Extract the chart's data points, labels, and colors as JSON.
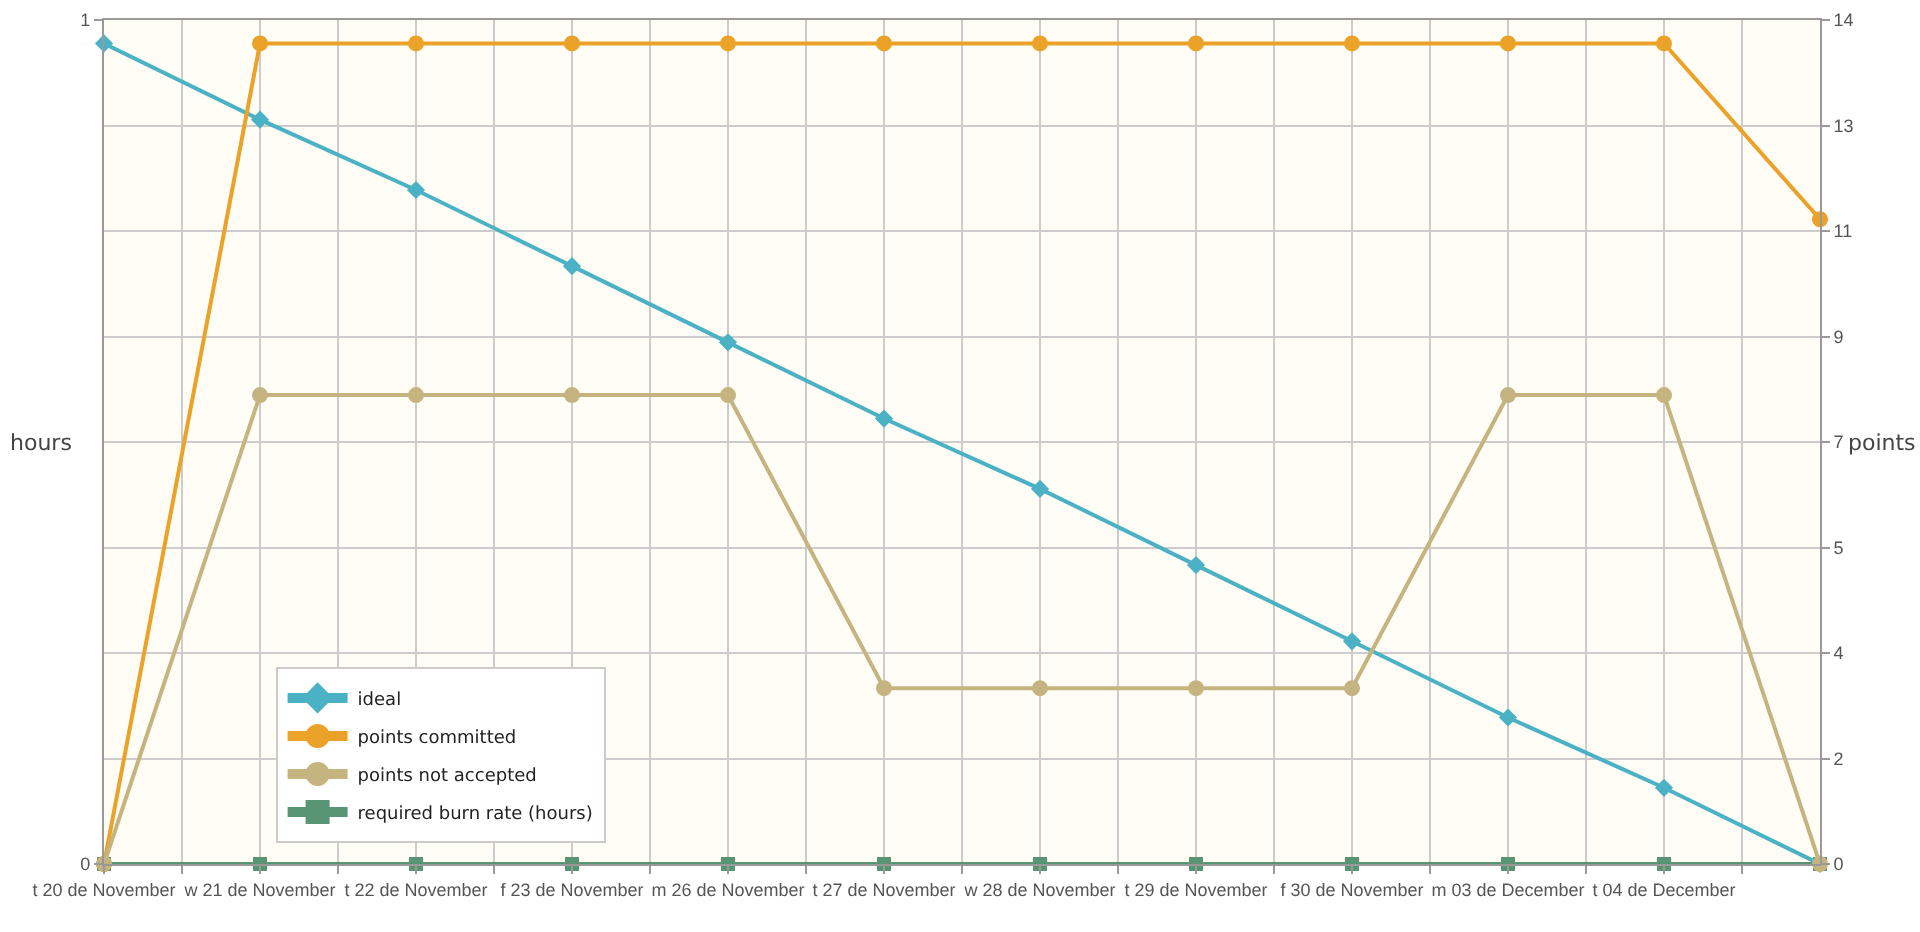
{
  "chart_data": {
    "type": "line",
    "ylabel": "hours",
    "y2label": "points",
    "categories": [
      "t 20 de November",
      "w 21 de November",
      "t 22 de November",
      "f 23 de November",
      "m 26 de November",
      "t 27 de November",
      "w 28 de November",
      "t 29 de November",
      "f 30 de November",
      "m 03 de December",
      "t 04 de December",
      null
    ],
    "ylim": [
      0,
      1
    ],
    "yticks": [
      0,
      1
    ],
    "y2lim": [
      0,
      14.4
    ],
    "y2ticks": [
      0,
      {
        "value": 1.8,
        "label": "2"
      },
      {
        "value": 3.6,
        "label": "4"
      },
      {
        "value": 5.4,
        "label": "5"
      },
      {
        "value": 7.2,
        "label": "7"
      },
      9,
      {
        "value": 10.8,
        "label": "11"
      },
      {
        "value": 12.6,
        "label": "13"
      },
      {
        "value": 14.4,
        "label": "14"
      }
    ],
    "grid": true,
    "legend": "bottom left",
    "line_style": "solid",
    "series": [
      {
        "name": "ideal",
        "color": "#4bb2c5",
        "axis": "y2",
        "marker": "diamond",
        "values": [
          14,
          12.7,
          11.5,
          10.2,
          8.9,
          7.6,
          6.4,
          5.1,
          3.8,
          2.5,
          1.3,
          0
        ]
      },
      {
        "name": "points committed",
        "color": "#eaa228",
        "axis": "y2",
        "marker": "circle",
        "values": [
          0,
          14,
          14,
          14,
          14,
          14,
          14,
          14,
          14,
          14,
          14,
          11
        ]
      },
      {
        "name": "points not accepted",
        "color": "#c5b47f",
        "axis": "y2",
        "marker": "circle",
        "values": [
          0,
          8,
          8,
          8,
          8,
          3,
          3,
          3,
          3,
          8,
          8,
          0
        ]
      },
      {
        "name": "required burn rate (hours)",
        "color": "#579575",
        "marker": "square",
        "values": [
          0,
          0,
          0,
          0,
          0,
          0,
          0,
          0,
          0,
          0,
          0,
          0
        ]
      }
    ]
  }
}
